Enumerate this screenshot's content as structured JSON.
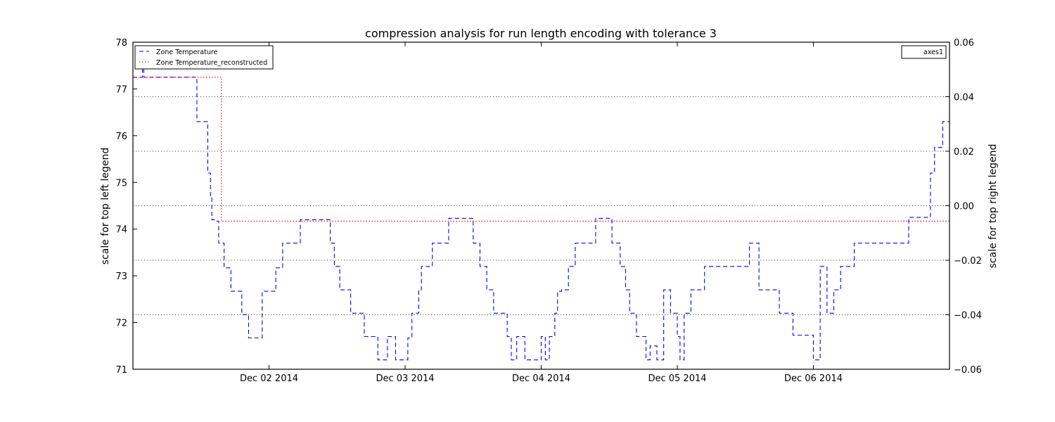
{
  "chart_data": {
    "type": "line",
    "title": "compression analysis for run length encoding with tolerance 3",
    "ylabel_left": "scale for top left legend",
    "ylabel_right": "scale for top right legend",
    "x_ticks": [
      "Dec 02 2014",
      "Dec 03 2014",
      "Dec 04 2014",
      "Dec 05 2014",
      "Dec 06 2014"
    ],
    "xlim_days": [
      0,
      6
    ],
    "ylim_left": [
      71,
      78
    ],
    "yticks_left": [
      "71",
      "72",
      "73",
      "74",
      "75",
      "76",
      "77",
      "78"
    ],
    "ylim_right": [
      -0.06,
      0.06
    ],
    "yticks_right": [
      "−0.06",
      "−0.04",
      "−0.02",
      "0.00",
      "0.02",
      "0.04",
      "0.06"
    ],
    "grid_right_values": [
      -0.04,
      -0.02,
      0.0,
      0.02,
      0.04
    ],
    "legend_left_placement": "top-left",
    "legend_right_placement": "top-right",
    "series": [
      {
        "name": "Zone Temperature",
        "color": "#0000ff",
        "style": "dashed",
        "x": [
          0.0,
          0.07,
          0.08,
          0.45,
          0.47,
          0.55,
          0.57,
          0.58,
          0.6,
          0.62,
          0.63,
          0.67,
          0.72,
          0.8,
          0.85,
          0.9,
          0.95,
          1.05,
          1.1,
          1.13,
          1.18,
          1.23,
          1.4,
          1.45,
          1.48,
          1.52,
          1.6,
          1.66,
          1.7,
          1.75,
          1.8,
          1.87,
          1.93,
          1.96,
          1.98,
          2.02,
          2.05,
          2.1,
          2.12,
          2.15,
          2.2,
          2.25,
          2.32,
          2.37,
          2.4,
          2.45,
          2.5,
          2.55,
          2.6,
          2.65,
          2.75,
          2.78,
          2.82,
          2.88,
          2.95,
          3.0,
          3.03,
          3.06,
          3.1,
          3.12,
          3.15,
          3.2,
          3.25,
          3.3,
          3.36,
          3.4,
          3.45,
          3.52,
          3.58,
          3.62,
          3.65,
          3.7,
          3.77,
          3.8,
          3.85,
          3.9,
          3.92,
          3.95,
          4.0,
          4.02,
          4.05,
          4.1,
          4.15,
          4.2,
          4.3,
          4.5,
          4.53,
          4.6,
          4.75,
          4.8,
          4.85,
          4.97,
          5.0,
          5.05,
          5.1,
          5.15,
          5.2,
          5.25,
          5.3,
          5.38,
          5.43,
          5.5,
          5.58,
          5.66,
          5.7,
          5.76,
          5.8,
          5.83,
          5.86,
          5.89,
          5.92,
          5.95,
          5.97,
          6.0
        ],
        "y": [
          77.25,
          77.45,
          77.25,
          77.25,
          76.3,
          75.2,
          74.7,
          74.2,
          74.17,
          74.17,
          73.7,
          73.17,
          72.67,
          72.17,
          71.67,
          71.67,
          72.67,
          73.17,
          73.7,
          73.7,
          73.7,
          74.2,
          74.2,
          73.7,
          73.2,
          72.7,
          72.2,
          72.2,
          71.7,
          71.7,
          71.2,
          71.7,
          71.2,
          71.2,
          71.2,
          71.67,
          72.2,
          72.7,
          73.2,
          73.2,
          73.7,
          73.7,
          74.23,
          74.23,
          74.23,
          74.23,
          73.7,
          73.2,
          72.7,
          72.2,
          71.7,
          71.2,
          71.7,
          71.2,
          71.2,
          71.7,
          71.2,
          71.7,
          72.2,
          72.67,
          72.7,
          73.2,
          73.7,
          73.7,
          73.7,
          74.23,
          74.23,
          73.7,
          73.2,
          72.7,
          72.2,
          71.7,
          71.2,
          71.5,
          71.2,
          72.7,
          72.7,
          72.2,
          71.7,
          71.2,
          72.2,
          72.7,
          72.7,
          73.2,
          73.2,
          73.2,
          73.7,
          72.7,
          72.2,
          72.2,
          71.73,
          71.73,
          71.2,
          73.2,
          72.2,
          72.7,
          73.2,
          73.2,
          73.7,
          73.7,
          73.7,
          73.7,
          73.7,
          73.7,
          74.25,
          74.25,
          74.25,
          74.25,
          75.2,
          75.75,
          75.75,
          76.3,
          76.3,
          76.3
        ]
      },
      {
        "name": "Zone Temperature_reconstructed",
        "color": "#ff0000",
        "style": "dotted",
        "x": [
          0.0,
          0.65,
          0.65,
          6.0
        ],
        "y": [
          77.25,
          77.25,
          74.17,
          74.17
        ]
      }
    ],
    "legend_right_entries": [
      "axes1"
    ]
  }
}
